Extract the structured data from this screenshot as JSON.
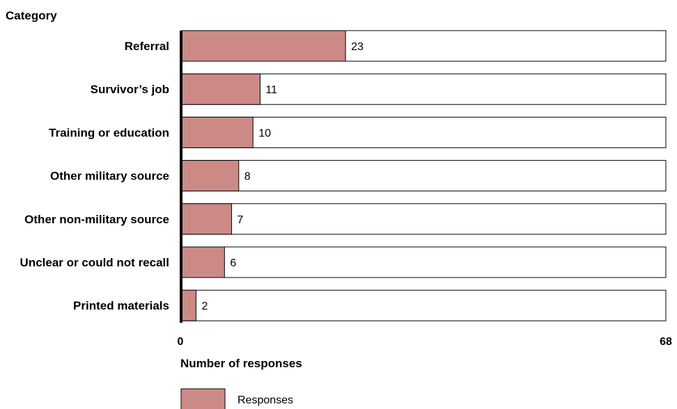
{
  "chart_data": {
    "type": "bar",
    "orientation": "horizontal",
    "categories_title": "Category",
    "categories": [
      "Referral",
      "Survivor’s job",
      "Training or education",
      "Other military source",
      "Other non-military source",
      "Unclear or could not recall",
      "Printed materials"
    ],
    "series": [
      {
        "name": "Responses",
        "values": [
          23,
          11,
          10,
          8,
          7,
          6,
          2
        ]
      }
    ],
    "xlabel": "Number of responses",
    "xlim": [
      0,
      68
    ],
    "x_ticks": [
      "0",
      "68"
    ],
    "legend": {
      "position": "bottom-left",
      "entries": [
        "Responses"
      ]
    },
    "grid": false,
    "colors": {
      "bar": "#cc8a86",
      "track": "#ffffff",
      "stroke": "#000000"
    }
  }
}
